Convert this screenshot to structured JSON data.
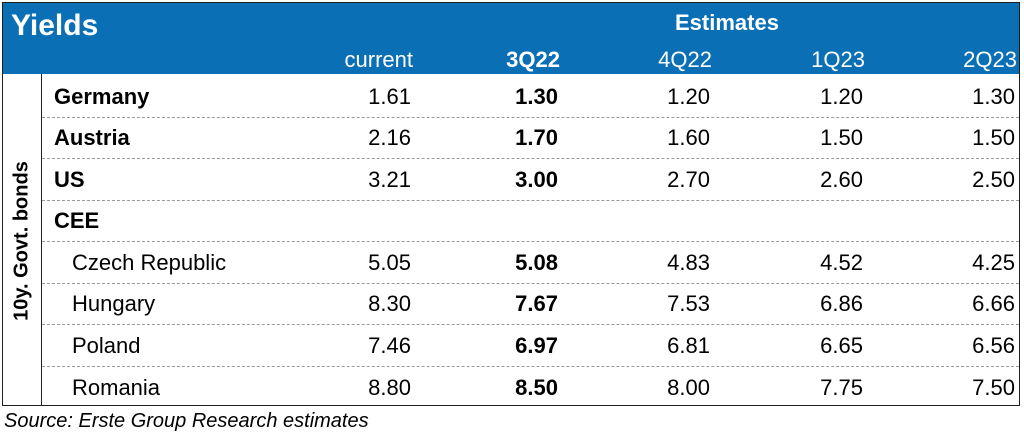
{
  "title": "Yields",
  "estimates_label": "Estimates",
  "side_label": "10y. Govt. bonds",
  "columns": [
    "current",
    "3Q22",
    "4Q22",
    "1Q23",
    "2Q23"
  ],
  "source": "Source: Erste Group Research estimates",
  "colors": {
    "header_bg": "#0a6fb4",
    "header_text": "#ffffff"
  },
  "chart_data": {
    "type": "table",
    "title": "Yields",
    "columns": [
      "current",
      "3Q22",
      "4Q22",
      "1Q23",
      "2Q23"
    ],
    "rows": [
      {
        "label": "Germany",
        "values": [
          "1.61",
          "1.30",
          "1.20",
          "1.20",
          "1.30"
        ]
      },
      {
        "label": "Austria",
        "values": [
          "2.16",
          "1.70",
          "1.60",
          "1.50",
          "1.50"
        ]
      },
      {
        "label": "US",
        "values": [
          "3.21",
          "3.00",
          "2.70",
          "2.60",
          "2.50"
        ]
      },
      {
        "label": "CEE",
        "values": [
          "",
          "",
          "",
          "",
          ""
        ]
      },
      {
        "label": "Czech Republic",
        "values": [
          "5.05",
          "5.08",
          "4.83",
          "4.52",
          "4.25"
        ]
      },
      {
        "label": "Hungary",
        "values": [
          "8.30",
          "7.67",
          "7.53",
          "6.86",
          "6.66"
        ]
      },
      {
        "label": "Poland",
        "values": [
          "7.46",
          "6.97",
          "6.81",
          "6.65",
          "6.56"
        ]
      },
      {
        "label": "Romania",
        "values": [
          "8.80",
          "8.50",
          "8.00",
          "7.75",
          "7.50"
        ]
      }
    ]
  }
}
